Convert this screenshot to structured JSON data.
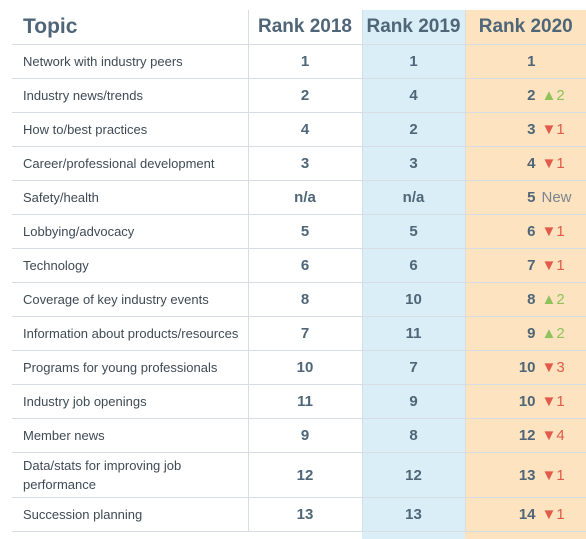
{
  "headers": {
    "topic": "Topic",
    "y2018": "Rank 2018",
    "y2019": "Rank 2019",
    "y2020": "Rank 2020"
  },
  "colors": {
    "col2019_bg": "#d9eef6",
    "col2020_bg": "#fde3c0",
    "up": "#8fc25a",
    "down": "#e25a4a"
  },
  "rows": [
    {
      "topic": "Network with industry peers",
      "r2018": "1",
      "r2019": "1",
      "r2020": "1",
      "change": "",
      "dir": "none"
    },
    {
      "topic": "Industry news/trends",
      "r2018": "2",
      "r2019": "4",
      "r2020": "2",
      "change": "▲2",
      "dir": "up"
    },
    {
      "topic": "How to/best practices",
      "r2018": "4",
      "r2019": "2",
      "r2020": "3",
      "change": "▼1",
      "dir": "down"
    },
    {
      "topic": "Career/professional development",
      "r2018": "3",
      "r2019": "3",
      "r2020": "4",
      "change": "▼1",
      "dir": "down"
    },
    {
      "topic": "Safety/health",
      "r2018": "n/a",
      "r2019": "n/a",
      "r2020": "5",
      "change": "New",
      "dir": "new"
    },
    {
      "topic": "Lobbying/advocacy",
      "r2018": "5",
      "r2019": "5",
      "r2020": "6",
      "change": "▼1",
      "dir": "down"
    },
    {
      "topic": "Technology",
      "r2018": "6",
      "r2019": "6",
      "r2020": "7",
      "change": "▼1",
      "dir": "down"
    },
    {
      "topic": "Coverage of key industry events",
      "r2018": "8",
      "r2019": "10",
      "r2020": "8",
      "change": "▲2",
      "dir": "up"
    },
    {
      "topic": "Information about products/resources",
      "r2018": "7",
      "r2019": "11",
      "r2020": "9",
      "change": "▲2",
      "dir": "up"
    },
    {
      "topic": "Programs for young professionals",
      "r2018": "10",
      "r2019": "7",
      "r2020": "10",
      "change": "▼3",
      "dir": "down"
    },
    {
      "topic": "Industry job openings",
      "r2018": "11",
      "r2019": "9",
      "r2020": "10",
      "change": "▼1",
      "dir": "down"
    },
    {
      "topic": "Member news",
      "r2018": "9",
      "r2019": "8",
      "r2020": "12",
      "change": "▼4",
      "dir": "down"
    },
    {
      "topic": "Data/stats for improving job performance",
      "r2018": "12",
      "r2019": "12",
      "r2020": "13",
      "change": "▼1",
      "dir": "down"
    },
    {
      "topic": "Succession planning",
      "r2018": "13",
      "r2019": "13",
      "r2020": "14",
      "change": "▼1",
      "dir": "down"
    }
  ]
}
